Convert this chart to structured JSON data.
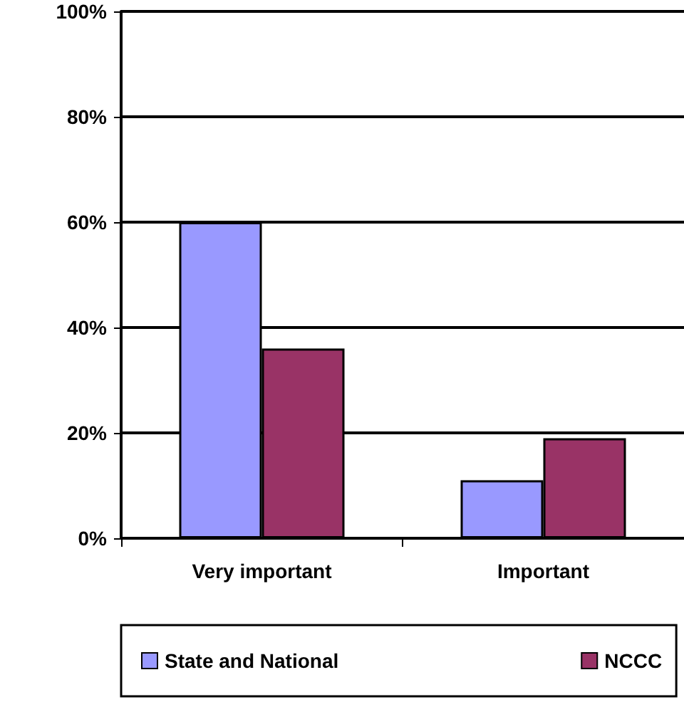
{
  "chart_data": {
    "type": "bar",
    "categories": [
      "Very important",
      "Important"
    ],
    "series": [
      {
        "name": "State and National",
        "color": "#9999ff",
        "values": [
          60,
          11
        ]
      },
      {
        "name": "NCCC",
        "color": "#993366",
        "values": [
          36,
          19
        ]
      }
    ],
    "ylim": [
      0,
      100
    ],
    "yticks": [
      {
        "value": 0,
        "label": "0%"
      },
      {
        "value": 20,
        "label": "20%"
      },
      {
        "value": 40,
        "label": "40%"
      },
      {
        "value": 60,
        "label": "60%"
      },
      {
        "value": 80,
        "label": "80%"
      },
      {
        "value": 100,
        "label": "100%"
      }
    ],
    "grid": "y",
    "legend": "bottom"
  }
}
